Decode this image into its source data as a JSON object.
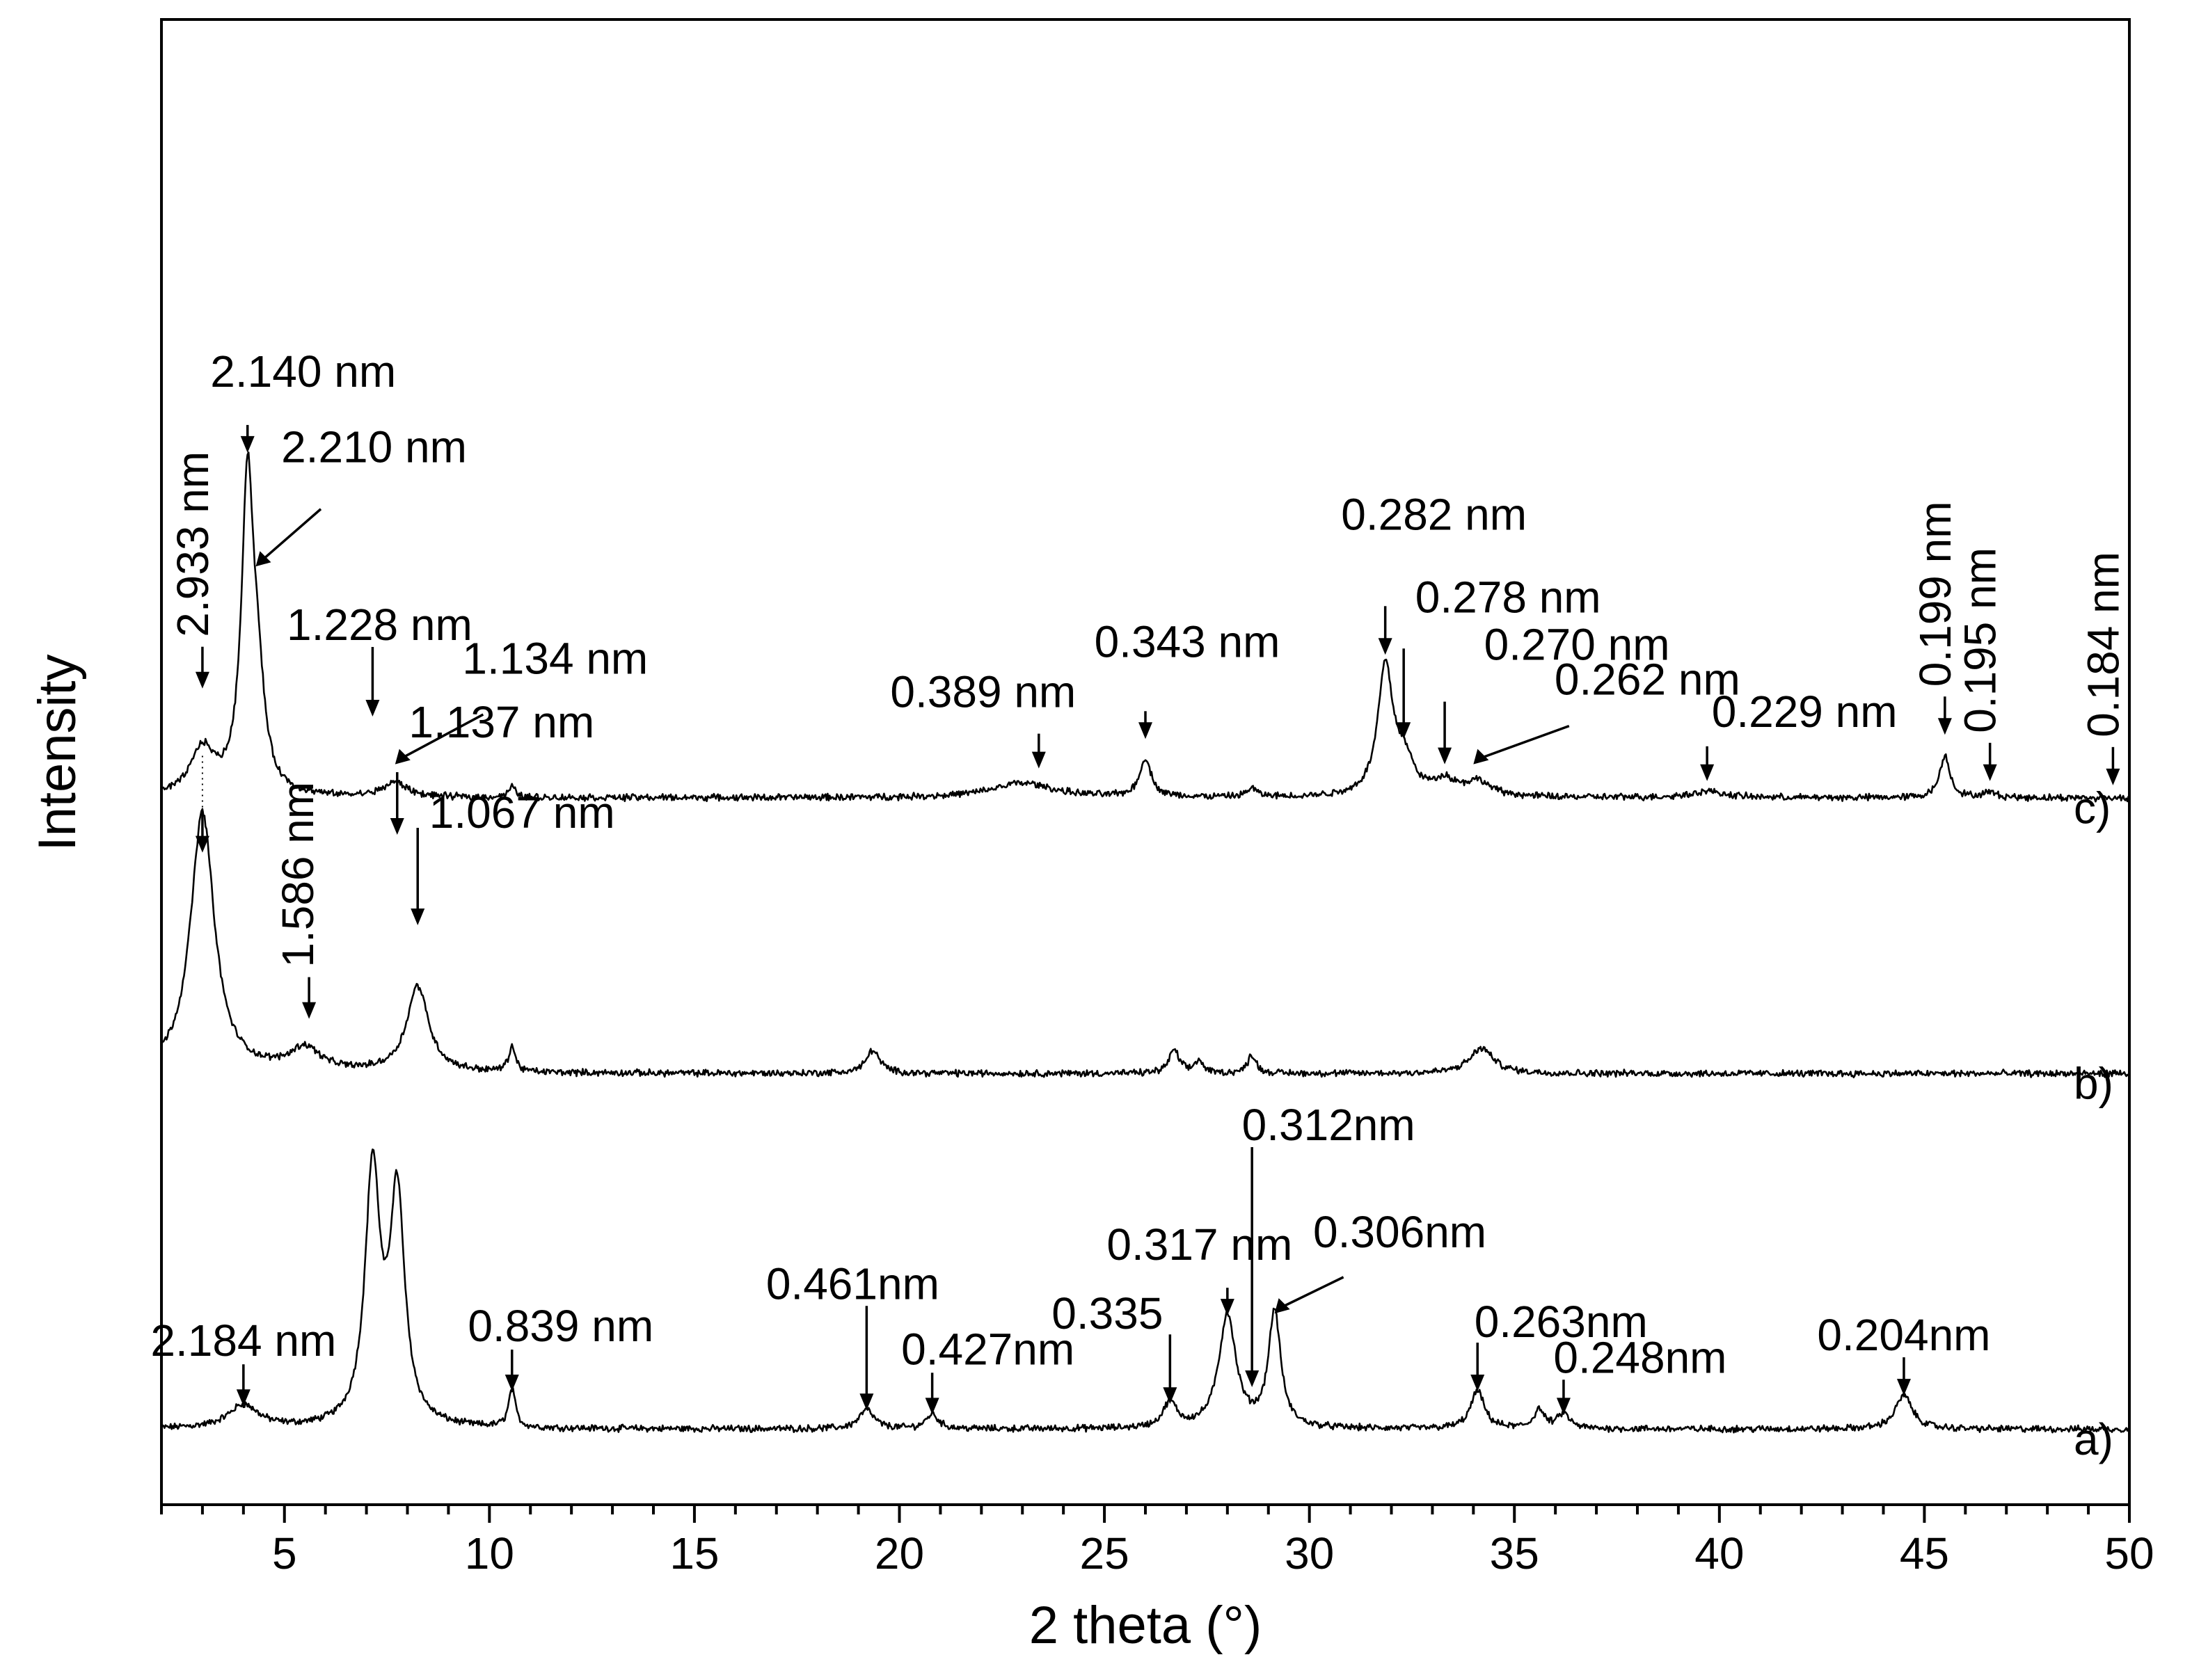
{
  "chart_data": {
    "type": "line",
    "xlabel": "2 theta (°)",
    "ylabel": "Intensity",
    "xlim": [
      2,
      50
    ],
    "x_ticks": [
      5,
      10,
      15,
      20,
      25,
      30,
      35,
      40,
      45,
      50
    ],
    "x_minor_step": 1,
    "y_axis_ticks": false,
    "grid": false,
    "series": [
      {
        "name": "a)",
        "baseline": 1.0,
        "peaks": [
          {
            "x": 4.0,
            "h": 0.55,
            "w": 0.45
          },
          {
            "x": 7.15,
            "h": 6.0,
            "w": 0.22
          },
          {
            "x": 7.75,
            "h": 5.4,
            "w": 0.22
          },
          {
            "x": 10.55,
            "h": 0.9,
            "w": 0.1
          },
          {
            "x": 19.2,
            "h": 0.45,
            "w": 0.22
          },
          {
            "x": 20.8,
            "h": 0.35,
            "w": 0.18
          },
          {
            "x": 26.6,
            "h": 0.6,
            "w": 0.2
          },
          {
            "x": 28.0,
            "h": 2.7,
            "w": 0.25
          },
          {
            "x": 29.15,
            "h": 2.75,
            "w": 0.18
          },
          {
            "x": 34.1,
            "h": 0.9,
            "w": 0.2
          },
          {
            "x": 35.6,
            "h": 0.45,
            "w": 0.15
          },
          {
            "x": 36.2,
            "h": 0.35,
            "w": 0.18
          },
          {
            "x": 44.5,
            "h": 0.8,
            "w": 0.25
          }
        ],
        "label": "a)",
        "annotations": [
          {
            "text": "2.184 nm",
            "x": 4.0,
            "tip": 1.55
          },
          {
            "text": "0.839 nm",
            "x": 10.55,
            "tip": 1.9
          },
          {
            "text": "0.461nm",
            "x": 19.2,
            "tip": 1.45
          },
          {
            "text": "0.427nm",
            "x": 20.8,
            "tip": 1.35
          },
          {
            "text": "0.335",
            "x": 26.6,
            "tip": 1.6
          },
          {
            "text": "0.317 nm",
            "x": 28.0,
            "tip": 3.7
          },
          {
            "text": "0.312nm",
            "x": 28.6,
            "tip": 2.0
          },
          {
            "text": "0.306nm",
            "x": 29.15,
            "tip": 3.75
          },
          {
            "text": "0.263nm",
            "x": 34.1,
            "tip": 1.9
          },
          {
            "text": "0.248nm",
            "x": 36.2,
            "tip": 1.35
          },
          {
            "text": "0.204nm",
            "x": 44.5,
            "tip": 1.8
          }
        ]
      },
      {
        "name": "b)",
        "baseline": 9.45,
        "peaks": [
          {
            "x": 3.0,
            "h": 6.2,
            "w": 0.35
          },
          {
            "x": 5.5,
            "h": 0.55,
            "w": 0.45
          },
          {
            "x": 8.25,
            "h": 2.05,
            "w": 0.32
          },
          {
            "x": 10.55,
            "h": 0.6,
            "w": 0.1
          },
          {
            "x": 19.35,
            "h": 0.55,
            "w": 0.2
          },
          {
            "x": 26.7,
            "h": 0.55,
            "w": 0.15
          },
          {
            "x": 27.3,
            "h": 0.3,
            "w": 0.12
          },
          {
            "x": 28.6,
            "h": 0.45,
            "w": 0.12
          },
          {
            "x": 34.2,
            "h": 0.6,
            "w": 0.35
          }
        ],
        "label": "b)",
        "annotations": [
          {
            "text": "1.586 nm",
            "x": 5.6,
            "tip": 10.75
          }
        ]
      },
      {
        "name": "c)",
        "baseline": 16.0,
        "peaks": [
          {
            "x": 3.0,
            "h": 1.1,
            "w": 0.35
          },
          {
            "x": 4.1,
            "h": 7.3,
            "w": 0.18
          },
          {
            "x": 4.35,
            "h": 2.0,
            "w": 0.2
          },
          {
            "x": 7.7,
            "h": 0.35,
            "w": 0.35
          },
          {
            "x": 10.55,
            "h": 0.25,
            "w": 0.1
          },
          {
            "x": 23.0,
            "h": 0.35,
            "w": 0.9
          },
          {
            "x": 26.0,
            "h": 0.9,
            "w": 0.17
          },
          {
            "x": 28.6,
            "h": 0.2,
            "w": 0.15
          },
          {
            "x": 31.85,
            "h": 3.0,
            "w": 0.22
          },
          {
            "x": 32.3,
            "h": 0.8,
            "w": 0.3
          },
          {
            "x": 33.3,
            "h": 0.35,
            "w": 0.3
          },
          {
            "x": 34.1,
            "h": 0.35,
            "w": 0.4
          },
          {
            "x": 39.7,
            "h": 0.15,
            "w": 0.5
          },
          {
            "x": 45.5,
            "h": 1.0,
            "w": 0.15
          },
          {
            "x": 46.6,
            "h": 0.12,
            "w": 0.2
          }
        ],
        "label": "c)",
        "annotations": [
          {
            "text": "2.140 nm",
            "x": 4.1,
            "tip": 24.2
          },
          {
            "text": "2.933 nm",
            "x": 3.0,
            "tip": 18.6
          },
          {
            "text": "2.210 nm",
            "x": 4.3,
            "tip": 21.5
          },
          {
            "text": "1.134 nm",
            "x": 7.7,
            "tip": 16.8
          },
          {
            "text": "0.389 nm",
            "x": 23.4,
            "tip": 16.7
          },
          {
            "text": "0.343 nm",
            "x": 26.0,
            "tip": 17.4
          },
          {
            "text": "0.282 nm",
            "x": 31.85,
            "tip": 19.4
          },
          {
            "text": "0.278 nm",
            "x": 32.3,
            "tip": 17.4
          },
          {
            "text": "0.270 nm",
            "x": 33.3,
            "tip": 16.8
          },
          {
            "text": "0.262 nm",
            "x": 34.0,
            "tip": 16.8
          },
          {
            "text": "0.229 nm",
            "x": 39.7,
            "tip": 16.4
          },
          {
            "text": "0.199 nm",
            "x": 45.5,
            "tip": 17.5
          },
          {
            "text": "0.195 nm",
            "x": 46.6,
            "tip": 16.4
          },
          {
            "text": "0.184 nm",
            "x": 49.6,
            "tip": 16.3
          }
        ]
      }
    ],
    "extra_annotations": [
      {
        "text": "1.228 nm",
        "x": 7.15
      },
      {
        "text": "1.137 nm",
        "x": 7.75
      },
      {
        "text": "1.067 nm",
        "x": 8.25
      }
    ]
  }
}
